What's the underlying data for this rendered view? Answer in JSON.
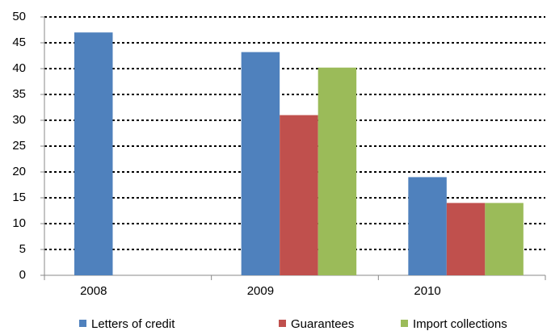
{
  "chart_data": {
    "type": "bar",
    "categories": [
      "2008",
      "2009",
      "2010"
    ],
    "series": [
      {
        "name": "Letters of credit",
        "color": "#4f81bd",
        "values": [
          47,
          43.2,
          19
        ]
      },
      {
        "name": "Guarantees",
        "color": "#c0504d",
        "values": [
          null,
          31,
          14
        ]
      },
      {
        "name": "Import collections",
        "color": "#9bbb59",
        "values": [
          null,
          40.2,
          14
        ]
      }
    ],
    "ylim": [
      0,
      50
    ],
    "yticks": [
      0,
      5,
      10,
      15,
      20,
      25,
      30,
      35,
      40,
      45,
      50
    ],
    "grid": true,
    "legend": "bottom"
  }
}
